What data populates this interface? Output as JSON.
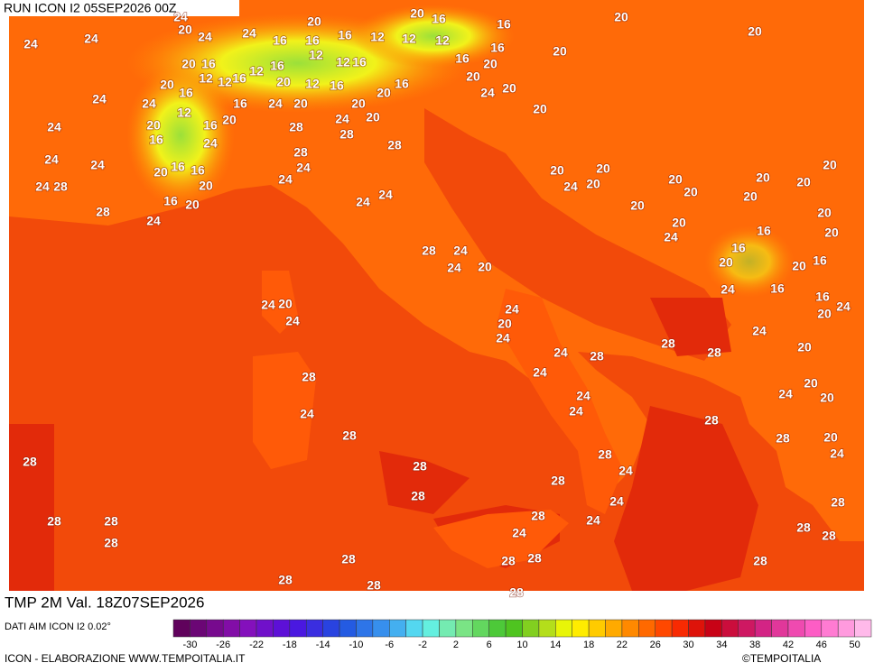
{
  "header": {
    "run": "RUN ICON I2 05SEP2026 00Z"
  },
  "map_title": "TMP 2M Val. 18Z07SEP2026",
  "footer": {
    "source": "DATI AIM ICON I2 0.02°",
    "credit": "ICON - ELABORAZIONE WWW.TEMPOITALIA.IT",
    "brand": "©TEMPOITALIA"
  },
  "colorbar": {
    "range": [
      -32,
      52
    ],
    "ticks": [
      -30,
      -26,
      -22,
      -18,
      -14,
      -10,
      -6,
      -2,
      2,
      6,
      10,
      14,
      18,
      22,
      26,
      30,
      34,
      38,
      42,
      46,
      50
    ]
  },
  "map_labels": [
    24,
    20,
    20,
    16,
    16,
    20,
    20,
    24,
    24,
    20,
    24,
    24,
    16,
    16,
    16,
    12,
    12,
    12,
    12,
    12,
    16,
    16,
    16,
    20,
    20,
    20,
    16,
    12,
    16,
    12,
    12,
    16,
    20,
    12,
    16,
    20,
    16,
    16,
    20,
    20,
    24,
    20,
    24,
    24,
    12,
    20,
    16,
    20,
    16,
    24,
    20,
    20,
    24,
    20,
    20,
    24,
    16,
    24,
    28,
    28,
    28,
    24,
    24,
    20,
    16,
    16,
    28,
    24,
    20,
    20,
    24,
    28,
    20,
    24,
    24,
    20,
    20,
    20,
    20,
    20,
    16,
    20,
    24,
    24,
    20,
    20,
    28,
    24,
    20,
    20,
    20,
    24,
    16,
    20,
    28,
    24,
    24,
    20,
    16,
    20,
    20,
    16,
    20,
    24,
    24,
    24,
    16,
    16,
    20,
    24,
    24,
    20,
    24,
    28,
    28,
    24,
    20,
    24,
    28,
    28,
    24,
    24,
    24,
    24,
    20,
    20,
    24,
    28,
    28,
    28,
    20,
    24,
    28,
    24,
    28,
    28,
    28,
    28,
    24,
    28,
    28,
    24,
    28,
    28,
    28,
    24,
    28,
    28,
    28,
    28,
    28,
    28,
    28,
    28,
    28
  ]
}
